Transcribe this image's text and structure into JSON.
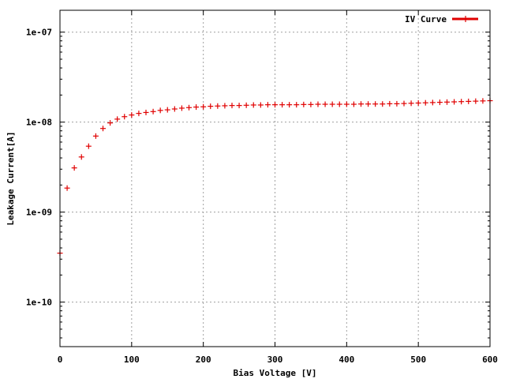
{
  "chart_data": {
    "type": "scatter",
    "xlabel": "Bias Voltage [V]",
    "ylabel": "Leakage Current[A]",
    "xlim": [
      0,
      600
    ],
    "ylim": [
      3.2e-11,
      1.75e-07
    ],
    "yscale": "log",
    "grid": true,
    "legend_position": "top-right",
    "x_ticks": [
      0,
      100,
      200,
      300,
      400,
      500,
      600
    ],
    "x_tick_labels": [
      "0",
      "100",
      "200",
      "300",
      "400",
      "500",
      "600"
    ],
    "y_ticks": [
      1e-10,
      1e-09,
      1e-08,
      1e-07
    ],
    "y_tick_labels": [
      "1e-10",
      "1e-09",
      "1e-08",
      "1e-07"
    ],
    "series": [
      {
        "name": "IV Curve",
        "color": "#e00000",
        "marker": "plus",
        "x": [
          0,
          10,
          20,
          30,
          40,
          50,
          60,
          70,
          80,
          90,
          100,
          110,
          120,
          130,
          140,
          150,
          160,
          170,
          180,
          190,
          200,
          210,
          220,
          230,
          240,
          250,
          260,
          270,
          280,
          290,
          300,
          310,
          320,
          330,
          340,
          350,
          360,
          370,
          380,
          390,
          400,
          410,
          420,
          430,
          440,
          450,
          460,
          470,
          480,
          490,
          500,
          510,
          520,
          530,
          540,
          550,
          560,
          570,
          580,
          590,
          600
        ],
        "y": [
          3.5e-10,
          1.85e-09,
          3.1e-09,
          4.1e-09,
          5.4e-09,
          7e-09,
          8.5e-09,
          9.8e-09,
          1.08e-08,
          1.15e-08,
          1.2e-08,
          1.25e-08,
          1.28e-08,
          1.31e-08,
          1.35e-08,
          1.37e-08,
          1.4e-08,
          1.43e-08,
          1.45e-08,
          1.47e-08,
          1.48e-08,
          1.5e-08,
          1.51e-08,
          1.52e-08,
          1.53e-08,
          1.53e-08,
          1.54e-08,
          1.55e-08,
          1.55e-08,
          1.56e-08,
          1.56e-08,
          1.56e-08,
          1.56e-08,
          1.56e-08,
          1.57e-08,
          1.57e-08,
          1.58e-08,
          1.58e-08,
          1.58e-08,
          1.58e-08,
          1.58e-08,
          1.58e-08,
          1.59e-08,
          1.59e-08,
          1.59e-08,
          1.59e-08,
          1.6e-08,
          1.6e-08,
          1.61e-08,
          1.62e-08,
          1.63e-08,
          1.64e-08,
          1.65e-08,
          1.66e-08,
          1.67e-08,
          1.68e-08,
          1.69e-08,
          1.7e-08,
          1.71e-08,
          1.72e-08,
          1.73e-08
        ]
      }
    ]
  }
}
